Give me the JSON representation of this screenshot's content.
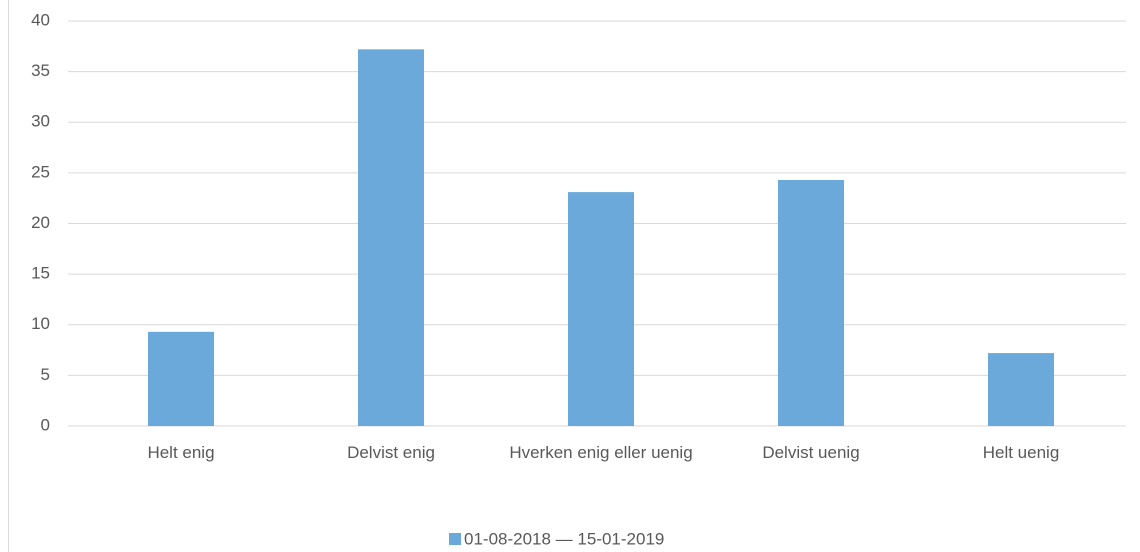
{
  "chart_data": {
    "type": "bar",
    "categories": [
      "Helt enig",
      "Delvist enig",
      "Hverken enig eller uenig",
      "Delvist uenig",
      "Helt uenig"
    ],
    "series": [
      {
        "name": "01-08-2018 — 15-01-2019",
        "color": "#6aa9da",
        "values": [
          9.3,
          37.2,
          23.1,
          24.3,
          7.2
        ]
      }
    ],
    "ylim": [
      0,
      40
    ],
    "yticks": [
      0,
      5,
      10,
      15,
      20,
      25,
      30,
      35,
      40
    ],
    "grid": true,
    "legend": "bottom"
  }
}
